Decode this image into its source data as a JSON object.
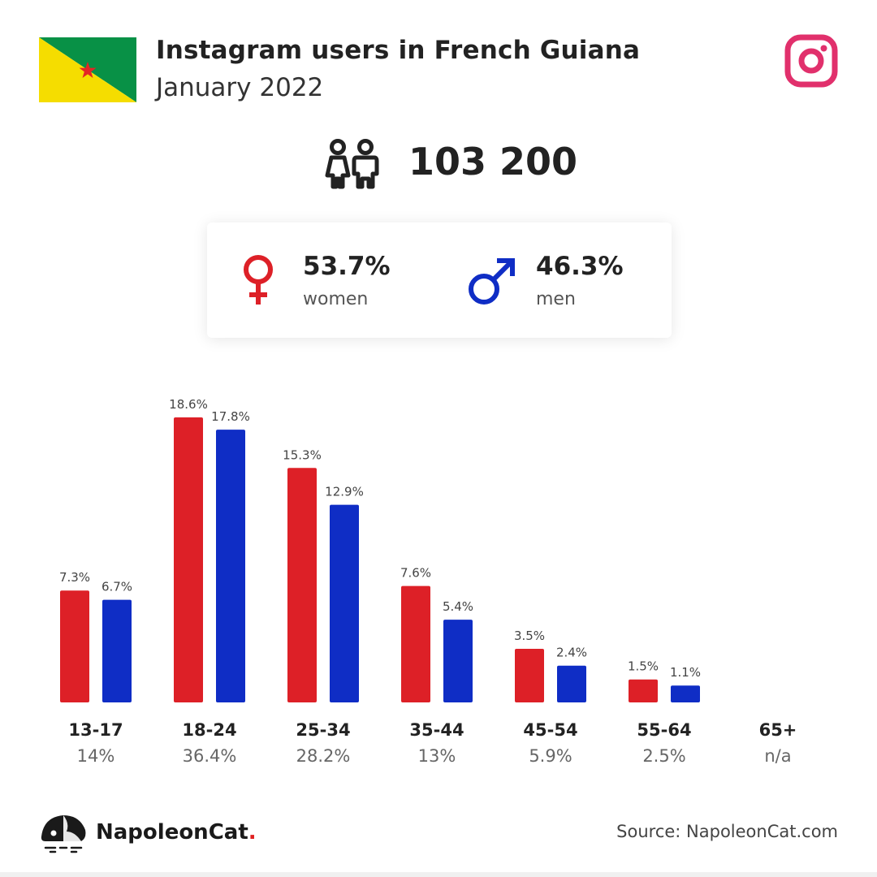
{
  "header": {
    "title": "Instagram users in French Guiana",
    "subtitle": "January 2022",
    "flag_colors": {
      "green": "#089146",
      "yellow": "#f5dd00",
      "star": "#e42525"
    },
    "instagram_icon_color": "#e1306c"
  },
  "total": {
    "icon": "people-icon",
    "value": "103 200"
  },
  "gender": {
    "women": {
      "percent": "53.7%",
      "label": "women",
      "icon": "female-icon",
      "color": "#dd2027"
    },
    "men": {
      "percent": "46.3%",
      "label": "men",
      "icon": "male-icon",
      "color": "#0f2dc5"
    }
  },
  "chart_data": {
    "type": "bar",
    "categories": [
      "13-17",
      "18-24",
      "25-34",
      "35-44",
      "45-54",
      "55-64",
      "65+"
    ],
    "group_totals": [
      "14%",
      "36.4%",
      "28.2%",
      "13%",
      "5.9%",
      "2.5%",
      "n/a"
    ],
    "series": [
      {
        "name": "women",
        "color": "#dd2027",
        "values": [
          7.3,
          18.6,
          15.3,
          7.6,
          3.5,
          1.5,
          null
        ],
        "labels": [
          "7.3%",
          "18.6%",
          "15.3%",
          "7.6%",
          "3.5%",
          "1.5%",
          ""
        ]
      },
      {
        "name": "men",
        "color": "#0f2dc5",
        "values": [
          6.7,
          17.8,
          12.9,
          5.4,
          2.4,
          1.1,
          null
        ],
        "labels": [
          "6.7%",
          "17.8%",
          "12.9%",
          "5.4%",
          "2.4%",
          "1.1%",
          ""
        ]
      }
    ],
    "title": "",
    "xlabel": "",
    "ylabel": "",
    "ylim": [
      0,
      18.6
    ],
    "grid": false,
    "legend": "none"
  },
  "footer": {
    "brand": "NapoleonCat",
    "brand_dot": ".",
    "source": "Source: NapoleonCat.com",
    "logo_icon": "napoleoncat-logo-icon"
  }
}
